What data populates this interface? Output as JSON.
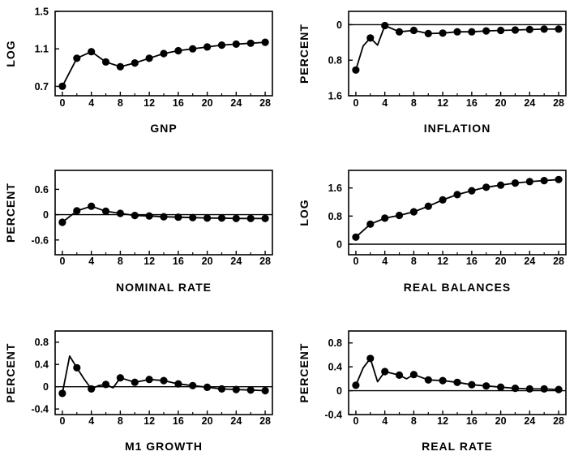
{
  "chart_data": [
    {
      "type": "line",
      "xlabel": "GNP",
      "ylabel": "LOG",
      "x_ticks": [
        0,
        4,
        8,
        12,
        16,
        20,
        24,
        28
      ],
      "x_tick_labels": [
        "0",
        "4",
        "8",
        "12",
        "16",
        "20",
        "24",
        "28"
      ],
      "xlim": [
        -1,
        29
      ],
      "y_ticks": [
        0.7,
        1.1,
        1.5
      ],
      "y_tick_labels": [
        "0.7",
        "1.1",
        "1.5"
      ],
      "ylim": [
        0.6,
        1.5
      ],
      "zero_line": false,
      "y_inverted": false,
      "series": [
        {
          "line": [
            [
              0,
              0.7
            ],
            [
              2,
              1.0
            ],
            [
              4,
              1.07
            ],
            [
              6,
              0.96
            ],
            [
              8,
              0.91
            ],
            [
              10,
              0.95
            ],
            [
              12,
              1.0
            ],
            [
              14,
              1.05
            ],
            [
              16,
              1.08
            ],
            [
              18,
              1.1
            ],
            [
              20,
              1.12
            ],
            [
              22,
              1.14
            ],
            [
              24,
              1.15
            ],
            [
              26,
              1.16
            ],
            [
              28,
              1.17
            ]
          ],
          "markers": [
            [
              0,
              0.7
            ],
            [
              2,
              1.0
            ],
            [
              4,
              1.07
            ],
            [
              6,
              0.96
            ],
            [
              8,
              0.91
            ],
            [
              10,
              0.95
            ],
            [
              12,
              1.0
            ],
            [
              14,
              1.05
            ],
            [
              16,
              1.08
            ],
            [
              18,
              1.1
            ],
            [
              20,
              1.12
            ],
            [
              22,
              1.14
            ],
            [
              24,
              1.15
            ],
            [
              26,
              1.16
            ],
            [
              28,
              1.17
            ]
          ]
        }
      ]
    },
    {
      "type": "line",
      "xlabel": "INFLATION",
      "ylabel": "PERCENT",
      "x_ticks": [
        0,
        4,
        8,
        12,
        16,
        20,
        24,
        28
      ],
      "x_tick_labels": [
        "0",
        "4",
        "8",
        "12",
        "16",
        "20",
        "24",
        "28"
      ],
      "xlim": [
        -1,
        29
      ],
      "y_ticks": [
        0,
        0.8,
        1.6
      ],
      "y_tick_labels": [
        "0",
        "0.8",
        "1.6"
      ],
      "ylim": [
        -0.3,
        1.6
      ],
      "zero_line": true,
      "y_inverted": true,
      "series": [
        {
          "line": [
            [
              0,
              1.02
            ],
            [
              1,
              0.48
            ],
            [
              2,
              0.3
            ],
            [
              3,
              0.46
            ],
            [
              4,
              0.02
            ],
            [
              6,
              0.16
            ],
            [
              8,
              0.13
            ],
            [
              10,
              0.2
            ],
            [
              12,
              0.19
            ],
            [
              14,
              0.16
            ],
            [
              16,
              0.16
            ],
            [
              18,
              0.14
            ],
            [
              20,
              0.13
            ],
            [
              22,
              0.12
            ],
            [
              24,
              0.11
            ],
            [
              26,
              0.1
            ],
            [
              28,
              0.1
            ]
          ],
          "markers": [
            [
              0,
              1.02
            ],
            [
              2,
              0.3
            ],
            [
              4,
              0.02
            ],
            [
              6,
              0.16
            ],
            [
              8,
              0.13
            ],
            [
              10,
              0.2
            ],
            [
              12,
              0.19
            ],
            [
              14,
              0.16
            ],
            [
              16,
              0.16
            ],
            [
              18,
              0.14
            ],
            [
              20,
              0.13
            ],
            [
              22,
              0.12
            ],
            [
              24,
              0.11
            ],
            [
              26,
              0.1
            ],
            [
              28,
              0.1
            ]
          ]
        }
      ]
    },
    {
      "type": "line",
      "xlabel": "NOMINAL RATE",
      "ylabel": "PERCENT",
      "x_ticks": [
        0,
        4,
        8,
        12,
        16,
        20,
        24,
        28
      ],
      "x_tick_labels": [
        "0",
        "4",
        "8",
        "12",
        "16",
        "20",
        "24",
        "28"
      ],
      "xlim": [
        -1,
        29
      ],
      "y_ticks": [
        -0.6,
        0,
        0.6
      ],
      "y_tick_labels": [
        "-0.6",
        "0",
        "0.6"
      ],
      "ylim": [
        -0.95,
        1.05
      ],
      "zero_line": true,
      "y_inverted": false,
      "series": [
        {
          "line": [
            [
              0,
              -0.18
            ],
            [
              2,
              0.09
            ],
            [
              4,
              0.2
            ],
            [
              6,
              0.08
            ],
            [
              8,
              0.03
            ],
            [
              10,
              -0.02
            ],
            [
              12,
              -0.03
            ],
            [
              14,
              -0.05
            ],
            [
              16,
              -0.06
            ],
            [
              18,
              -0.07
            ],
            [
              20,
              -0.08
            ],
            [
              22,
              -0.08
            ],
            [
              24,
              -0.09
            ],
            [
              26,
              -0.09
            ],
            [
              28,
              -0.09
            ]
          ],
          "markers": [
            [
              0,
              -0.18
            ],
            [
              2,
              0.09
            ],
            [
              4,
              0.2
            ],
            [
              6,
              0.08
            ],
            [
              8,
              0.03
            ],
            [
              10,
              -0.02
            ],
            [
              12,
              -0.03
            ],
            [
              14,
              -0.05
            ],
            [
              16,
              -0.06
            ],
            [
              18,
              -0.07
            ],
            [
              20,
              -0.08
            ],
            [
              22,
              -0.08
            ],
            [
              24,
              -0.09
            ],
            [
              26,
              -0.09
            ],
            [
              28,
              -0.09
            ]
          ]
        }
      ]
    },
    {
      "type": "line",
      "xlabel": "REAL  BALANCES",
      "ylabel": "LOG",
      "x_ticks": [
        0,
        4,
        8,
        12,
        16,
        20,
        24,
        28
      ],
      "x_tick_labels": [
        "0",
        "4",
        "8",
        "12",
        "16",
        "20",
        "24",
        "28"
      ],
      "xlim": [
        -1,
        29
      ],
      "y_ticks": [
        0,
        0.8,
        1.6
      ],
      "y_tick_labels": [
        "0",
        "0.8",
        "1.6"
      ],
      "ylim": [
        -0.3,
        2.1
      ],
      "zero_line": true,
      "y_inverted": false,
      "series": [
        {
          "line": [
            [
              0,
              0.2
            ],
            [
              2,
              0.57
            ],
            [
              4,
              0.74
            ],
            [
              6,
              0.82
            ],
            [
              8,
              0.92
            ],
            [
              10,
              1.08
            ],
            [
              12,
              1.26
            ],
            [
              14,
              1.41
            ],
            [
              16,
              1.52
            ],
            [
              18,
              1.62
            ],
            [
              20,
              1.68
            ],
            [
              22,
              1.74
            ],
            [
              24,
              1.78
            ],
            [
              26,
              1.81
            ],
            [
              28,
              1.84
            ]
          ],
          "markers": [
            [
              0,
              0.2
            ],
            [
              2,
              0.57
            ],
            [
              4,
              0.74
            ],
            [
              6,
              0.82
            ],
            [
              8,
              0.92
            ],
            [
              10,
              1.08
            ],
            [
              12,
              1.26
            ],
            [
              14,
              1.41
            ],
            [
              16,
              1.52
            ],
            [
              18,
              1.62
            ],
            [
              20,
              1.68
            ],
            [
              22,
              1.74
            ],
            [
              24,
              1.78
            ],
            [
              26,
              1.81
            ],
            [
              28,
              1.84
            ]
          ]
        }
      ]
    },
    {
      "type": "line",
      "xlabel": "M1  GROWTH",
      "ylabel": "PERCENT",
      "x_ticks": [
        0,
        4,
        8,
        12,
        16,
        20,
        24,
        28
      ],
      "x_tick_labels": [
        "0",
        "4",
        "8",
        "12",
        "16",
        "20",
        "24",
        "28"
      ],
      "xlim": [
        -1,
        29
      ],
      "y_ticks": [
        -0.4,
        0,
        0.4,
        0.8
      ],
      "y_tick_labels": [
        "-0.4",
        "0",
        "0.4",
        "0.8"
      ],
      "ylim": [
        -0.5,
        1.0
      ],
      "zero_line": true,
      "y_inverted": false,
      "series": [
        {
          "line": [
            [
              0,
              -0.12
            ],
            [
              1,
              0.55
            ],
            [
              2,
              0.34
            ],
            [
              3,
              0.14
            ],
            [
              4,
              -0.04
            ],
            [
              5,
              0.02
            ],
            [
              6,
              0.04
            ],
            [
              7,
              -0.02
            ],
            [
              8,
              0.16
            ],
            [
              10,
              0.08
            ],
            [
              12,
              0.13
            ],
            [
              14,
              0.11
            ],
            [
              16,
              0.05
            ],
            [
              18,
              0.02
            ],
            [
              20,
              -0.01
            ],
            [
              22,
              -0.04
            ],
            [
              24,
              -0.05
            ],
            [
              26,
              -0.06
            ],
            [
              28,
              -0.07
            ]
          ],
          "markers": [
            [
              0,
              -0.12
            ],
            [
              2,
              0.34
            ],
            [
              4,
              -0.04
            ],
            [
              6,
              0.04
            ],
            [
              8,
              0.16
            ],
            [
              10,
              0.08
            ],
            [
              12,
              0.13
            ],
            [
              14,
              0.11
            ],
            [
              16,
              0.05
            ],
            [
              18,
              0.02
            ],
            [
              20,
              -0.01
            ],
            [
              22,
              -0.04
            ],
            [
              24,
              -0.05
            ],
            [
              26,
              -0.06
            ],
            [
              28,
              -0.07
            ]
          ]
        }
      ]
    },
    {
      "type": "line",
      "xlabel": "REAL  RATE",
      "ylabel": "PERCENT",
      "x_ticks": [
        0,
        4,
        8,
        12,
        16,
        20,
        24,
        28
      ],
      "x_tick_labels": [
        "0",
        "4",
        "8",
        "12",
        "16",
        "20",
        "24",
        "28"
      ],
      "xlim": [
        -1,
        29
      ],
      "y_ticks": [
        -0.4,
        0,
        0.4,
        0.8
      ],
      "y_tick_labels": [
        "-0.4",
        "0",
        "0.4",
        "0.8"
      ],
      "ylim": [
        -0.4,
        1.0
      ],
      "zero_line": true,
      "y_inverted": false,
      "series": [
        {
          "line": [
            [
              0,
              0.09
            ],
            [
              1,
              0.38
            ],
            [
              2,
              0.54
            ],
            [
              3,
              0.15
            ],
            [
              4,
              0.32
            ],
            [
              6,
              0.26
            ],
            [
              7,
              0.2
            ],
            [
              8,
              0.27
            ],
            [
              10,
              0.18
            ],
            [
              12,
              0.17
            ],
            [
              14,
              0.14
            ],
            [
              16,
              0.1
            ],
            [
              18,
              0.08
            ],
            [
              20,
              0.06
            ],
            [
              22,
              0.04
            ],
            [
              24,
              0.03
            ],
            [
              26,
              0.03
            ],
            [
              28,
              0.02
            ]
          ],
          "markers": [
            [
              0,
              0.09
            ],
            [
              2,
              0.54
            ],
            [
              4,
              0.32
            ],
            [
              6,
              0.26
            ],
            [
              8,
              0.27
            ],
            [
              10,
              0.18
            ],
            [
              12,
              0.17
            ],
            [
              14,
              0.14
            ],
            [
              16,
              0.1
            ],
            [
              18,
              0.08
            ],
            [
              20,
              0.06
            ],
            [
              22,
              0.04
            ],
            [
              24,
              0.03
            ],
            [
              26,
              0.03
            ],
            [
              28,
              0.02
            ]
          ]
        }
      ]
    }
  ]
}
